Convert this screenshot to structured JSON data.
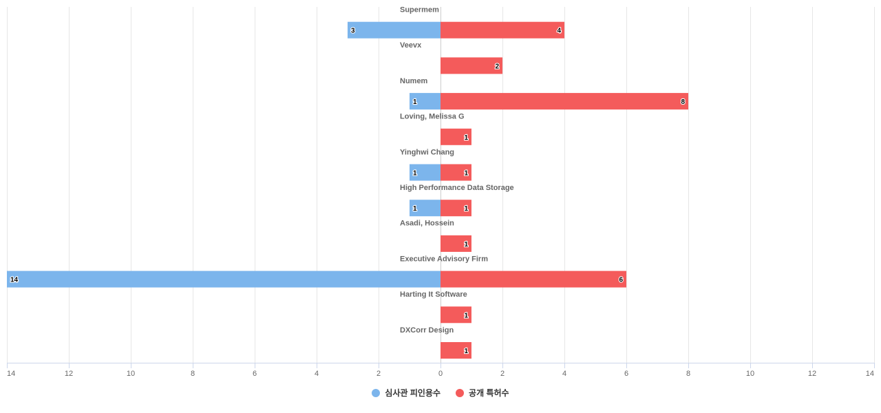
{
  "chart_data": {
    "type": "bar",
    "orientation": "horizontal-diverging",
    "categories": [
      "Supermem",
      "Veevx",
      "Numem",
      "Loving, Melissa G",
      "Yinghwi Chang",
      "High Performance Data Storage",
      "Asadi, Hossein",
      "Executive Advisory Firm",
      "Harting It Software",
      "DXCorr Design"
    ],
    "series": [
      {
        "name": "심사관 피인용수",
        "color": "#7cb5ec",
        "side": "left",
        "values": [
          3,
          0,
          1,
          0,
          1,
          1,
          0,
          14,
          0,
          0
        ]
      },
      {
        "name": "공개 특허수",
        "color": "#f45b5b",
        "side": "right",
        "values": [
          4,
          2,
          8,
          1,
          1,
          1,
          1,
          6,
          1,
          1
        ]
      }
    ],
    "xlim": [
      -14,
      14
    ],
    "xticks": [
      -14,
      -12,
      -10,
      -8,
      -6,
      -4,
      -2,
      0,
      2,
      4,
      6,
      8,
      10,
      12,
      14
    ],
    "tick_labels": [
      "14",
      "12",
      "10",
      "8",
      "6",
      "4",
      "2",
      "0",
      "2",
      "4",
      "6",
      "8",
      "10",
      "12",
      "14"
    ],
    "grid": true,
    "legend": "bottom-center"
  }
}
